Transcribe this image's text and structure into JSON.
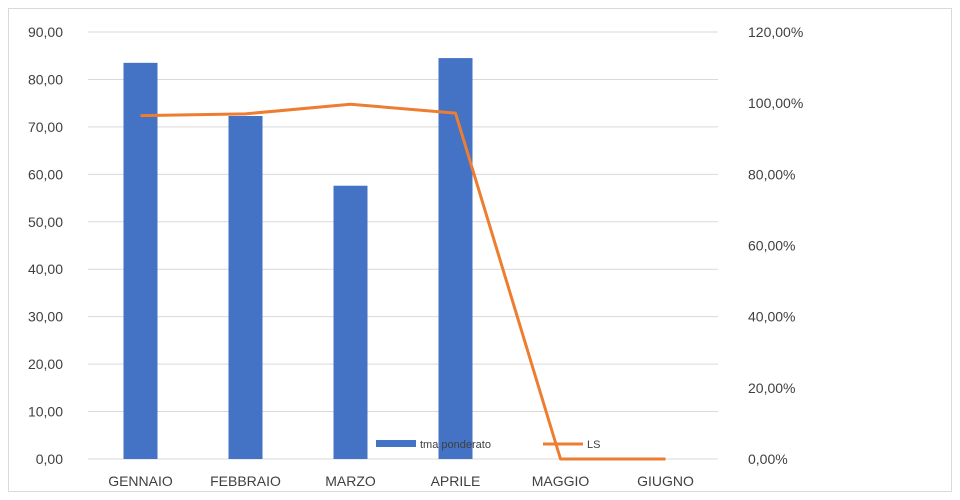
{
  "chart_data": {
    "type": "bar",
    "categories": [
      "GENNAIO",
      "FEBBRAIO",
      "MARZO",
      "APRILE",
      "MAGGIO",
      "GIUGNO"
    ],
    "series": [
      {
        "name": "tma ponderato",
        "type": "bar",
        "axis": "left",
        "color": "#4472c4",
        "values": [
          83.5,
          72.3,
          57.6,
          84.5,
          0,
          0
        ]
      },
      {
        "name": "LS",
        "type": "line",
        "axis": "right",
        "color": "#ed7d31",
        "values": [
          96.5,
          97.0,
          99.7,
          97.2,
          0.0,
          0.0
        ]
      }
    ],
    "y_left": {
      "min": 0,
      "max": 90,
      "step": 10,
      "tick_labels": [
        "0,00",
        "10,00",
        "20,00",
        "30,00",
        "40,00",
        "50,00",
        "60,00",
        "70,00",
        "80,00",
        "90,00"
      ]
    },
    "y_right": {
      "min": 0,
      "max": 120,
      "step": 20,
      "tick_labels": [
        "0,00%",
        "20,00%",
        "40,00%",
        "60,00%",
        "80,00%",
        "100,00%",
        "120,00%"
      ]
    },
    "title": "",
    "xlabel": "",
    "ylabel": "",
    "grid": true,
    "legend_position": "bottom-inside",
    "gridline_color": "#d9d9d9"
  }
}
